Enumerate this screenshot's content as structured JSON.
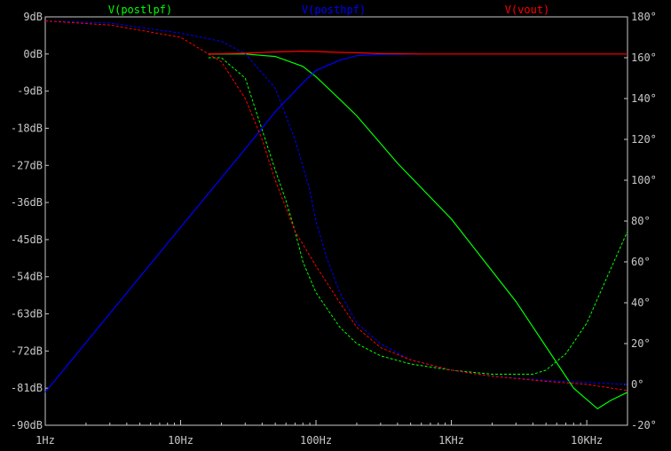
{
  "chart_data": {
    "type": "line",
    "title": "",
    "xlabel": "",
    "ylabel": "",
    "xscale": "log",
    "xlim": [
      1,
      20000
    ],
    "ylim": [
      -90,
      9
    ],
    "y2lim": [
      -20,
      180
    ],
    "grid": false,
    "legend_placement": "top",
    "x_ticks": [
      "1Hz",
      "10Hz",
      "100Hz",
      "1KHz",
      "10KHz"
    ],
    "x_tick_values": [
      1,
      10,
      100,
      1000,
      10000
    ],
    "y_ticks": [
      "9dB",
      "0dB",
      "-9dB",
      "-18dB",
      "-27dB",
      "-36dB",
      "-45dB",
      "-54dB",
      "-63dB",
      "-72dB",
      "-81dB",
      "-90dB"
    ],
    "y_tick_values": [
      9,
      0,
      -9,
      -18,
      -27,
      -36,
      -45,
      -54,
      -63,
      -72,
      -81,
      -90
    ],
    "y2_ticks": [
      "180°",
      "160°",
      "140°",
      "120°",
      "100°",
      "80°",
      "60°",
      "40°",
      "20°",
      "0°",
      "-20°"
    ],
    "y2_tick_values": [
      180,
      160,
      140,
      120,
      100,
      80,
      60,
      40,
      20,
      0,
      -20
    ],
    "series": [
      {
        "name": "V(postlpf)",
        "color": "#00ff00",
        "magnitude": {
          "x": [
            16,
            30,
            50,
            80,
            100,
            150,
            200,
            400,
            1000,
            3000,
            8000,
            12000,
            15000,
            20000
          ],
          "y": [
            0,
            0,
            -0.6,
            -3,
            -5.5,
            -11,
            -15,
            -26.5,
            -40,
            -60,
            -81,
            -86,
            -84,
            -82
          ]
        },
        "phase": {
          "x": [
            16,
            20,
            30,
            50,
            60,
            70,
            80,
            100,
            150,
            200,
            300,
            500,
            1000,
            2000,
            4000,
            5000,
            7000,
            10000,
            14000,
            20000
          ],
          "y": [
            160,
            160,
            150,
            105,
            90,
            75,
            60,
            45,
            28,
            20,
            14,
            10,
            7,
            5,
            5,
            7,
            15,
            30,
            52,
            75
          ]
        }
      },
      {
        "name": "V(posthpf)",
        "color": "#0000ff",
        "magnitude": {
          "x": [
            1,
            10,
            30,
            50,
            80,
            100,
            150,
            200,
            300,
            600
          ],
          "y": [
            -82,
            -42,
            -23,
            -14,
            -7,
            -4,
            -1.5,
            -0.4,
            -0.1,
            0
          ]
        },
        "phase": {
          "x": [
            1,
            3,
            10,
            20,
            30,
            50,
            70,
            90,
            100,
            120,
            150,
            200,
            300,
            500,
            1000,
            2000,
            5000,
            10000,
            20000
          ],
          "y": [
            178,
            177,
            172,
            168,
            162,
            145,
            120,
            95,
            80,
            62,
            45,
            30,
            20,
            12,
            7,
            4,
            2,
            1,
            0
          ]
        }
      },
      {
        "name": "V(vout)",
        "color": "#ff0000",
        "magnitude": {
          "x": [
            16,
            30,
            50,
            80,
            100,
            150,
            200,
            300,
            600,
            1000,
            20000
          ],
          "y": [
            0,
            0.2,
            0.5,
            0.7,
            0.6,
            0.4,
            0.3,
            0.1,
            0,
            0,
            0
          ]
        },
        "phase": {
          "x": [
            1,
            3,
            10,
            20,
            30,
            40,
            50,
            70,
            100,
            150,
            200,
            300,
            500,
            1000,
            2000,
            5000,
            10000,
            20000
          ],
          "y": [
            178,
            176,
            170,
            158,
            140,
            120,
            100,
            75,
            58,
            40,
            28,
            18,
            12,
            7,
            4,
            1.5,
            0,
            -3
          ]
        }
      }
    ]
  }
}
